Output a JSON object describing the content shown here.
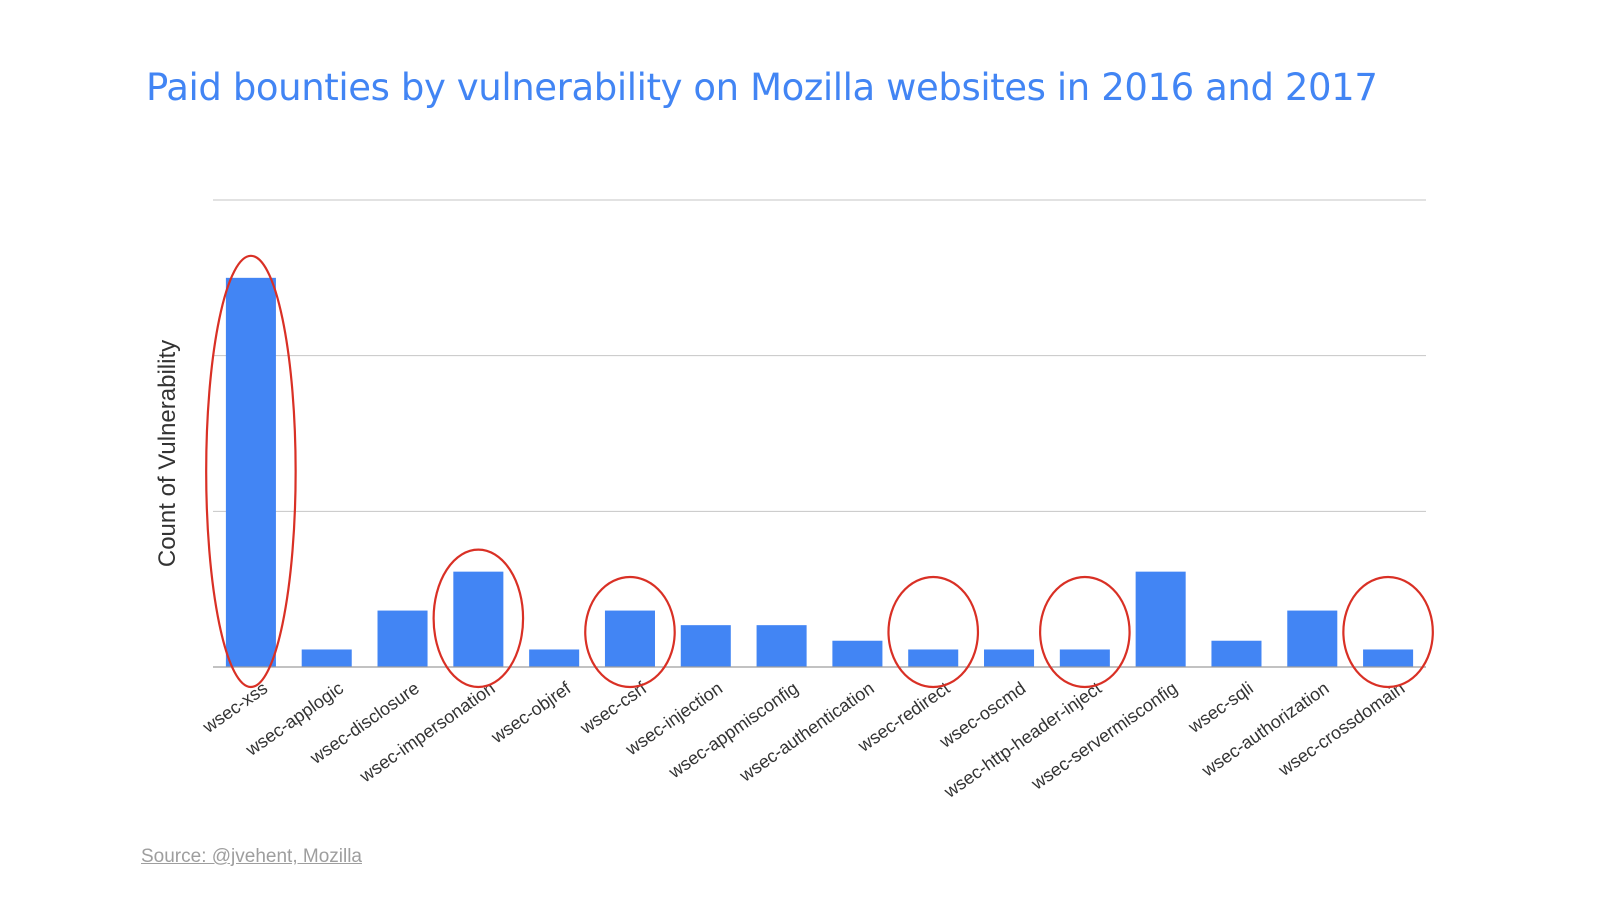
{
  "slide": {
    "title": "Paid bounties by vulnerability on Mozilla websites in 2016 and 2017",
    "source": "Source: @jvehent, Mozilla"
  },
  "chart_data": {
    "type": "bar",
    "title": "Paid bounties by vulnerability on Mozilla websites in 2016 and 2017",
    "xlabel": "",
    "ylabel": "Count of Vulnerability",
    "categories": [
      "wsec-xss",
      "wsec-applogic",
      "wsec-disclosure",
      "wsec-impersonation",
      "wsec-objref",
      "wsec-csrf",
      "wsec-injection",
      "wsec-appmisconfig",
      "wsec-authentication",
      "wsec-redirect",
      "wsec-oscmd",
      "wsec-http-header-inject",
      "wsec-servermisconfig",
      "wsec-sqli",
      "wsec-authorization",
      "wsec-crossdomain"
    ],
    "values": [
      40,
      1.8,
      5.8,
      9.8,
      1.8,
      5.8,
      4.3,
      4.3,
      2.7,
      1.8,
      1.8,
      1.8,
      9.8,
      2.7,
      5.8,
      1.8
    ],
    "ylim": [
      0,
      48
    ],
    "gridlines": [
      16,
      32,
      48
    ],
    "tick_labels_shown": false,
    "bar_color": "#4285f4",
    "highlight_color": "#d93025",
    "highlighted": [
      "wsec-xss",
      "wsec-impersonation",
      "wsec-csrf",
      "wsec-redirect",
      "wsec-http-header-inject",
      "wsec-crossdomain"
    ],
    "grid": true,
    "legend": "none"
  }
}
